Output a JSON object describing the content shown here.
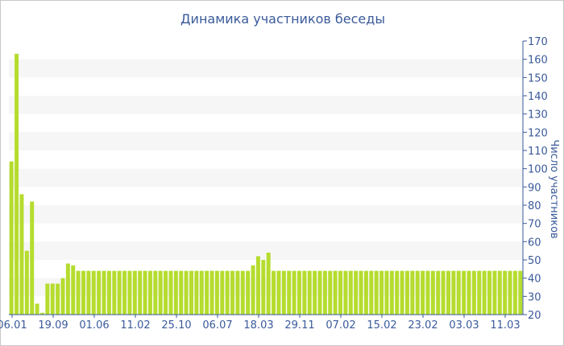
{
  "chart_data": {
    "type": "bar",
    "title": "Динамика участников беседы",
    "ylabel": "Число участников",
    "ylim": [
      20,
      170
    ],
    "yticks": [
      20,
      30,
      40,
      50,
      60,
      70,
      80,
      90,
      100,
      110,
      120,
      130,
      140,
      150,
      160,
      170
    ],
    "xtick_labels": [
      "06.01",
      "19.09",
      "01.06",
      "11.02",
      "25.10",
      "06.07",
      "18.03",
      "29.11",
      "07.02",
      "15.02",
      "23.02",
      "03.03",
      "11.03"
    ],
    "bar_color": "#b5dc2e",
    "values": [
      104,
      163,
      86,
      55,
      82,
      26,
      21,
      37,
      37,
      37,
      40,
      48,
      47,
      44,
      44,
      44,
      44,
      44,
      44,
      44,
      44,
      44,
      44,
      44,
      44,
      44,
      44,
      44,
      44,
      44,
      44,
      44,
      44,
      44,
      44,
      44,
      44,
      44,
      44,
      44,
      44,
      44,
      44,
      44,
      44,
      44,
      44,
      47,
      52,
      50,
      54,
      44,
      44,
      44,
      44,
      44,
      44,
      44,
      44,
      44,
      44,
      44,
      44,
      44,
      44,
      44,
      44,
      44,
      44,
      44,
      44,
      44,
      44,
      44,
      44,
      44,
      44,
      44,
      44,
      44,
      44,
      44,
      44,
      44,
      44,
      44,
      44,
      44,
      44,
      44,
      44,
      44,
      44,
      44,
      44,
      44,
      44,
      44,
      44,
      44
    ]
  }
}
